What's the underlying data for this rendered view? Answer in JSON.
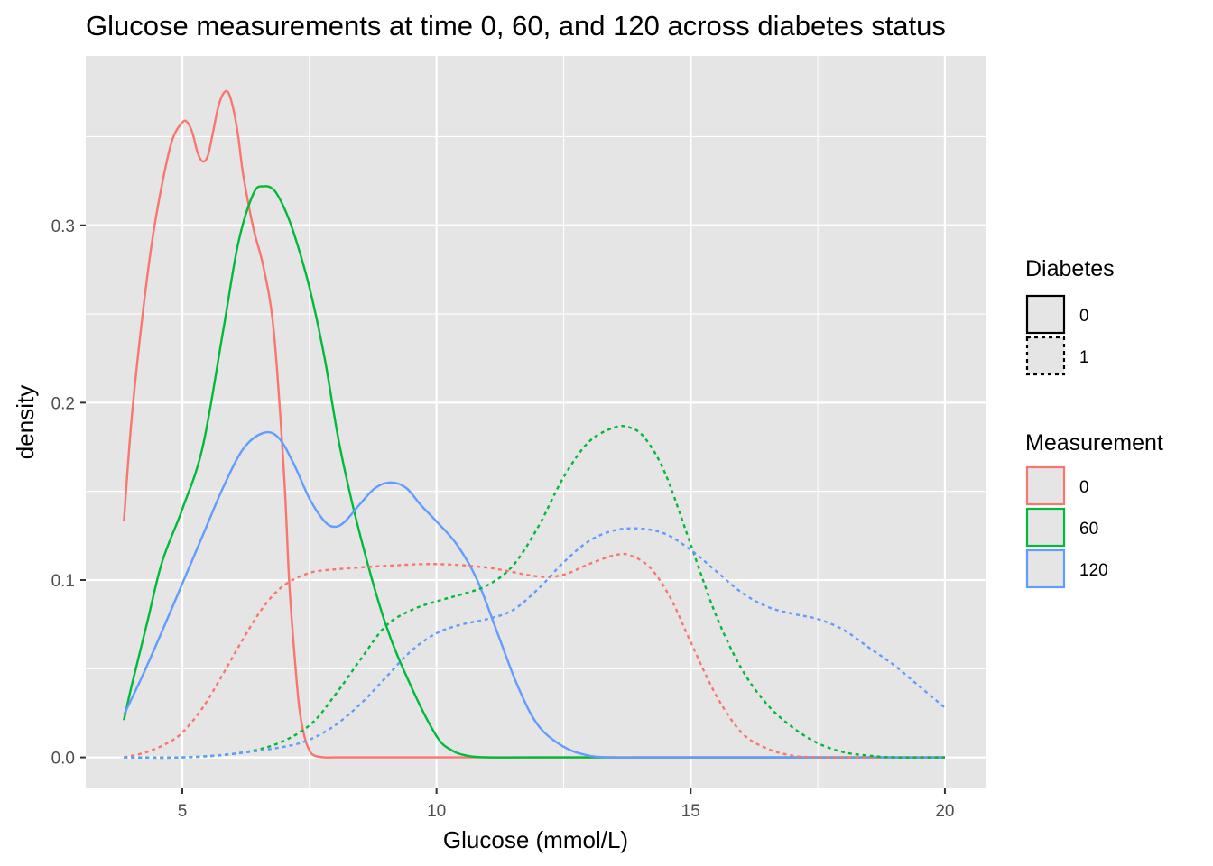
{
  "chart_data": {
    "type": "line",
    "subtype": "density",
    "title": "Glucose measurements at time 0, 60, and 120 across diabetes status",
    "xlabel": "Glucose (mmol/L)",
    "ylabel": "density",
    "xlim": [
      3.1,
      20.8
    ],
    "ylim": [
      -0.0175,
      0.3955
    ],
    "x_ticks": [
      5,
      10,
      15,
      20
    ],
    "x_tick_labels": [
      "5",
      "10",
      "15",
      "20"
    ],
    "x_minor_ticks": [
      7.5,
      12.5,
      17.5
    ],
    "y_ticks": [
      0.0,
      0.1,
      0.2,
      0.3
    ],
    "y_tick_labels": [
      "0.0",
      "0.1",
      "0.2",
      "0.3"
    ],
    "y_minor_ticks": [
      0.05,
      0.15,
      0.25,
      0.35
    ],
    "grid": true,
    "panel_background": "#e5e5e5",
    "legend_position": "right",
    "legends": [
      {
        "title": "Diabetes",
        "entries": [
          {
            "label": "0",
            "linetype": "solid"
          },
          {
            "label": "1",
            "linetype": "dotted"
          }
        ]
      },
      {
        "title": "Measurement",
        "entries": [
          {
            "label": "0",
            "color": "#F8766D"
          },
          {
            "label": "60",
            "color": "#00BA38"
          },
          {
            "label": "120",
            "color": "#619CFF"
          }
        ]
      }
    ],
    "series": [
      {
        "measurement": "0",
        "diabetes": "0",
        "color": "#F8766D",
        "linetype": "solid",
        "x": [
          3.85,
          4.0,
          4.2,
          4.4,
          4.6,
          4.8,
          5.0,
          5.1,
          5.2,
          5.3,
          5.4,
          5.5,
          5.6,
          5.7,
          5.8,
          5.9,
          6.0,
          6.1,
          6.2,
          6.4,
          6.6,
          6.8,
          7.0,
          7.1,
          7.2,
          7.3,
          7.4,
          7.5,
          7.6,
          7.8,
          8.0,
          9.0,
          11.0,
          15.0,
          20.0
        ],
        "y": [
          0.133,
          0.19,
          0.245,
          0.29,
          0.323,
          0.348,
          0.358,
          0.358,
          0.352,
          0.341,
          0.336,
          0.339,
          0.352,
          0.366,
          0.374,
          0.375,
          0.366,
          0.35,
          0.328,
          0.298,
          0.276,
          0.24,
          0.16,
          0.1,
          0.06,
          0.028,
          0.012,
          0.004,
          0.001,
          0.0,
          0.0,
          0.0,
          0.0,
          0.0,
          0.0
        ]
      },
      {
        "measurement": "60",
        "diabetes": "0",
        "color": "#00BA38",
        "linetype": "solid",
        "x": [
          3.85,
          4.0,
          4.3,
          4.6,
          5.0,
          5.4,
          5.8,
          6.1,
          6.4,
          6.6,
          6.8,
          7.0,
          7.2,
          7.5,
          7.8,
          8.1,
          8.5,
          9.0,
          9.5,
          10.0,
          10.3,
          10.6,
          11.0,
          12.0,
          15.0,
          20.0
        ],
        "y": [
          0.021,
          0.04,
          0.075,
          0.11,
          0.14,
          0.175,
          0.24,
          0.29,
          0.318,
          0.322,
          0.32,
          0.31,
          0.295,
          0.265,
          0.225,
          0.175,
          0.125,
          0.075,
          0.04,
          0.012,
          0.004,
          0.001,
          0.0,
          0.0,
          0.0,
          0.0
        ]
      },
      {
        "measurement": "120",
        "diabetes": "0",
        "color": "#619CFF",
        "linetype": "solid",
        "x": [
          3.85,
          4.2,
          4.6,
          5.0,
          5.4,
          5.8,
          6.2,
          6.6,
          6.9,
          7.2,
          7.5,
          7.8,
          8.0,
          8.2,
          8.5,
          8.8,
          9.1,
          9.4,
          9.7,
          10.0,
          10.4,
          10.8,
          11.2,
          11.6,
          12.0,
          12.5,
          13.0,
          13.5,
          14.0,
          15.0,
          20.0
        ],
        "y": [
          0.024,
          0.045,
          0.071,
          0.098,
          0.125,
          0.152,
          0.174,
          0.183,
          0.18,
          0.165,
          0.146,
          0.133,
          0.13,
          0.133,
          0.143,
          0.152,
          0.155,
          0.152,
          0.142,
          0.133,
          0.12,
          0.1,
          0.07,
          0.04,
          0.018,
          0.006,
          0.001,
          0.0,
          0.0,
          0.0,
          0.0
        ]
      },
      {
        "measurement": "0",
        "diabetes": "1",
        "color": "#F8766D",
        "linetype": "dotted",
        "x": [
          3.85,
          4.3,
          4.7,
          5.0,
          5.4,
          5.8,
          6.2,
          6.6,
          7.0,
          7.5,
          8.0,
          9.0,
          10.0,
          11.0,
          12.0,
          12.5,
          13.0,
          13.5,
          13.8,
          14.2,
          14.6,
          15.0,
          15.5,
          16.0,
          16.5,
          17.0,
          17.5,
          18.0,
          20.0
        ],
        "y": [
          0.0,
          0.003,
          0.008,
          0.014,
          0.028,
          0.047,
          0.067,
          0.085,
          0.097,
          0.104,
          0.106,
          0.108,
          0.109,
          0.107,
          0.102,
          0.103,
          0.109,
          0.114,
          0.114,
          0.107,
          0.09,
          0.065,
          0.035,
          0.014,
          0.005,
          0.001,
          0.0,
          0.0,
          0.0
        ]
      },
      {
        "measurement": "60",
        "diabetes": "1",
        "color": "#00BA38",
        "linetype": "dotted",
        "x": [
          3.85,
          5.0,
          6.0,
          6.8,
          7.5,
          8.0,
          8.5,
          9.0,
          9.5,
          10.0,
          10.5,
          11.0,
          11.5,
          12.0,
          12.5,
          13.0,
          13.5,
          13.8,
          14.1,
          14.5,
          15.0,
          15.5,
          16.0,
          16.5,
          17.0,
          17.5,
          18.0,
          18.5,
          19.0,
          20.0
        ],
        "y": [
          0.0,
          0.0,
          0.002,
          0.007,
          0.018,
          0.035,
          0.055,
          0.074,
          0.083,
          0.088,
          0.092,
          0.097,
          0.108,
          0.13,
          0.158,
          0.178,
          0.186,
          0.186,
          0.18,
          0.16,
          0.12,
          0.08,
          0.05,
          0.03,
          0.017,
          0.008,
          0.003,
          0.001,
          0.0,
          0.0
        ]
      },
      {
        "measurement": "120",
        "diabetes": "1",
        "color": "#619CFF",
        "linetype": "dotted",
        "x": [
          3.85,
          5.0,
          6.0,
          7.0,
          7.5,
          8.0,
          8.5,
          9.0,
          9.5,
          10.0,
          10.5,
          11.0,
          11.5,
          12.0,
          12.5,
          13.0,
          13.5,
          14.0,
          14.5,
          15.0,
          15.5,
          16.0,
          16.5,
          17.0,
          17.5,
          18.0,
          18.5,
          19.0,
          19.5,
          20.0
        ],
        "y": [
          0.0,
          0.0,
          0.002,
          0.006,
          0.01,
          0.018,
          0.03,
          0.045,
          0.06,
          0.07,
          0.075,
          0.078,
          0.083,
          0.095,
          0.11,
          0.122,
          0.128,
          0.129,
          0.126,
          0.117,
          0.105,
          0.093,
          0.085,
          0.081,
          0.078,
          0.072,
          0.062,
          0.052,
          0.04,
          0.028
        ]
      }
    ]
  }
}
